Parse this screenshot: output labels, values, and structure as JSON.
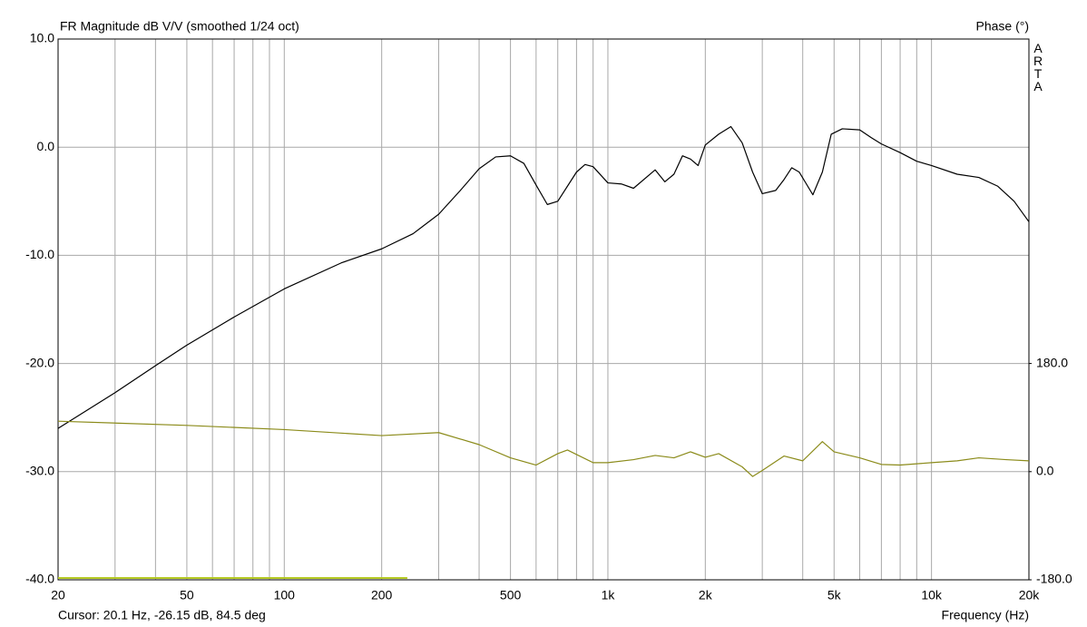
{
  "chart_data": {
    "type": "line",
    "title": "FR Magnitude dB V/V (smoothed 1/24 oct)",
    "y2_label": "Phase (°)",
    "watermark": "ARTA",
    "cursor": "Cursor: 20.1 Hz, -26.15 dB, 84.5 deg",
    "x_label": "Frequency (Hz)",
    "xscale": "log",
    "xlim": [
      20,
      20000
    ],
    "xticks": [
      20,
      50,
      100,
      200,
      500,
      {
        "value": 1000,
        "label": "1k"
      },
      {
        "value": 2000,
        "label": "2k"
      },
      {
        "value": 5000,
        "label": "5k"
      },
      {
        "value": 10000,
        "label": "10k"
      },
      {
        "value": 20000,
        "label": "20k"
      }
    ],
    "xgrid_minor": [
      30,
      40,
      60,
      70,
      80,
      90,
      300,
      400,
      600,
      700,
      800,
      900,
      3000,
      4000,
      6000,
      7000,
      8000,
      9000
    ],
    "ylim": [
      -40,
      10
    ],
    "yticks": [
      {
        "value": -40,
        "label": "-40.0"
      },
      {
        "value": -30,
        "label": "-30.0"
      },
      {
        "value": -20,
        "label": "-20.0"
      },
      {
        "value": -10,
        "label": "-10.0"
      },
      {
        "value": 0,
        "label": "0.0"
      },
      {
        "value": 10,
        "label": "10.0"
      }
    ],
    "y2lim": [
      -180,
      720
    ],
    "y2ticks": [
      {
        "value": -180,
        "label": "-180.0"
      },
      {
        "value": 0,
        "label": "0.0"
      },
      {
        "value": 180,
        "label": "180.0"
      }
    ],
    "grid": true,
    "series": [
      {
        "name": "Magnitude",
        "color": "#000000",
        "x": [
          20,
          30,
          40,
          50,
          70,
          100,
          150,
          200,
          250,
          300,
          350,
          400,
          450,
          500,
          550,
          600,
          650,
          700,
          800,
          850,
          900,
          1000,
          1100,
          1200,
          1400,
          1500,
          1600,
          1700,
          1800,
          1900,
          2000,
          2200,
          2400,
          2600,
          2800,
          3000,
          3300,
          3500,
          3700,
          3900,
          4300,
          4600,
          4900,
          5300,
          6000,
          6500,
          7000,
          8000,
          9000,
          10000,
          12000,
          14000,
          16000,
          18000,
          20000
        ],
        "values": [
          -26.0,
          -22.7,
          -20.2,
          -18.3,
          -15.7,
          -13.1,
          -10.7,
          -9.4,
          -8.0,
          -6.2,
          -4.0,
          -2.0,
          -0.9,
          -0.8,
          -1.5,
          -3.5,
          -5.3,
          -5.0,
          -2.3,
          -1.6,
          -1.8,
          -3.3,
          -3.4,
          -3.8,
          -2.1,
          -3.2,
          -2.5,
          -0.8,
          -1.1,
          -1.7,
          0.2,
          1.2,
          1.9,
          0.4,
          -2.3,
          -4.3,
          -4.0,
          -3.0,
          -1.9,
          -2.3,
          -4.4,
          -2.3,
          1.2,
          1.7,
          1.6,
          0.9,
          0.3,
          -0.5,
          -1.3,
          -1.7,
          -2.5,
          -2.8,
          -3.6,
          -5.0,
          -6.9
        ]
      },
      {
        "name": "Phase",
        "color": "#8b8b1a",
        "axis": "y2",
        "x": [
          20,
          50,
          100,
          200,
          300,
          400,
          500,
          600,
          700,
          750,
          900,
          1000,
          1200,
          1400,
          1600,
          1800,
          2000,
          2200,
          2600,
          2800,
          3000,
          3500,
          4000,
          4600,
          5000,
          6000,
          7000,
          8000,
          10000,
          12000,
          14000,
          17000,
          20000
        ],
        "values": [
          84,
          77,
          70,
          60,
          65,
          45,
          23,
          11,
          30,
          36,
          15,
          15,
          20,
          27,
          23,
          33,
          24,
          30,
          8,
          -8,
          2,
          26,
          18,
          50,
          33,
          23,
          12,
          11,
          15,
          18,
          23,
          20,
          18
        ]
      }
    ],
    "range_bar": {
      "color": "#b5c922",
      "x": [
        20,
        240
      ]
    }
  }
}
